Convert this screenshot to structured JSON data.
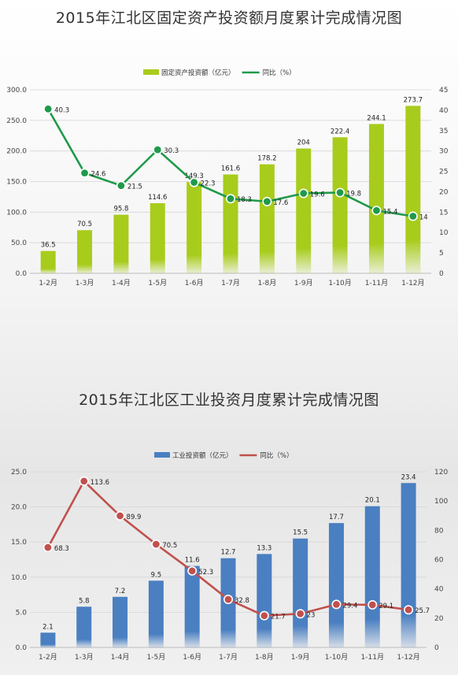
{
  "titles": {
    "chart1": "2015年江北区固定资产投资额月度累计完成情况图",
    "chart2": "2015年江北区工业投资月度累计完成情况图"
  },
  "chart_data": [
    {
      "type": "bar",
      "title": "2015年江北区固定资产投资额月度累计完成情况图",
      "categories": [
        "1-2月",
        "1-3月",
        "1-4月",
        "1-5月",
        "1-6月",
        "1-7月",
        "1-8月",
        "1-9月",
        "1-10月",
        "1-11月",
        "1-12月"
      ],
      "series": [
        {
          "name": "固定资产投资额（亿元）",
          "type": "bar",
          "axis": "left",
          "color": "#a8cc1c",
          "values": [
            36.5,
            70.5,
            95.8,
            114.6,
            149.3,
            161.6,
            178.2,
            204,
            222.4,
            244.1,
            273.7
          ]
        },
        {
          "name": "同比（%）",
          "type": "line",
          "axis": "right",
          "color": "#1f9a4a",
          "values": [
            40.3,
            24.6,
            21.5,
            30.3,
            22.3,
            18.3,
            17.6,
            19.6,
            19.8,
            15.4,
            14
          ]
        }
      ],
      "ylim": [
        0,
        300
      ],
      "yticks": [
        "0.0",
        "50.0",
        "100.0",
        "150.0",
        "200.0",
        "250.0",
        "300.0"
      ],
      "y2lim": [
        0,
        45
      ],
      "y2ticks": [
        "0",
        "5",
        "10",
        "15",
        "20",
        "25",
        "30",
        "35",
        "40",
        "45"
      ],
      "legend": "top-center"
    },
    {
      "type": "bar",
      "title": "2015年江北区工业投资月度累计完成情况图",
      "categories": [
        "1-2月",
        "1-3月",
        "1-4月",
        "1-5月",
        "1-6月",
        "1-7月",
        "1-8月",
        "1-9月",
        "1-10月",
        "1-11月",
        "1-12月"
      ],
      "series": [
        {
          "name": "工业投资额（亿元）",
          "type": "bar",
          "axis": "left",
          "color": "#4a7fc1",
          "values": [
            2.1,
            5.8,
            7.2,
            9.5,
            11.6,
            12.7,
            13.3,
            15.5,
            17.7,
            20.1,
            23.4
          ]
        },
        {
          "name": "同比（%）",
          "type": "line",
          "axis": "right",
          "color": "#c0504d",
          "values": [
            68.3,
            113.6,
            89.9,
            70.5,
            52.3,
            32.8,
            21.7,
            23,
            29.4,
            29.1,
            25.7
          ]
        }
      ],
      "ylim": [
        0,
        25
      ],
      "yticks": [
        "0.0",
        "5.0",
        "10.0",
        "15.0",
        "20.0",
        "25.0"
      ],
      "y2lim": [
        0,
        120
      ],
      "y2ticks": [
        "0",
        "20",
        "40",
        "60",
        "80",
        "100",
        "120"
      ],
      "legend": "top-center"
    }
  ]
}
